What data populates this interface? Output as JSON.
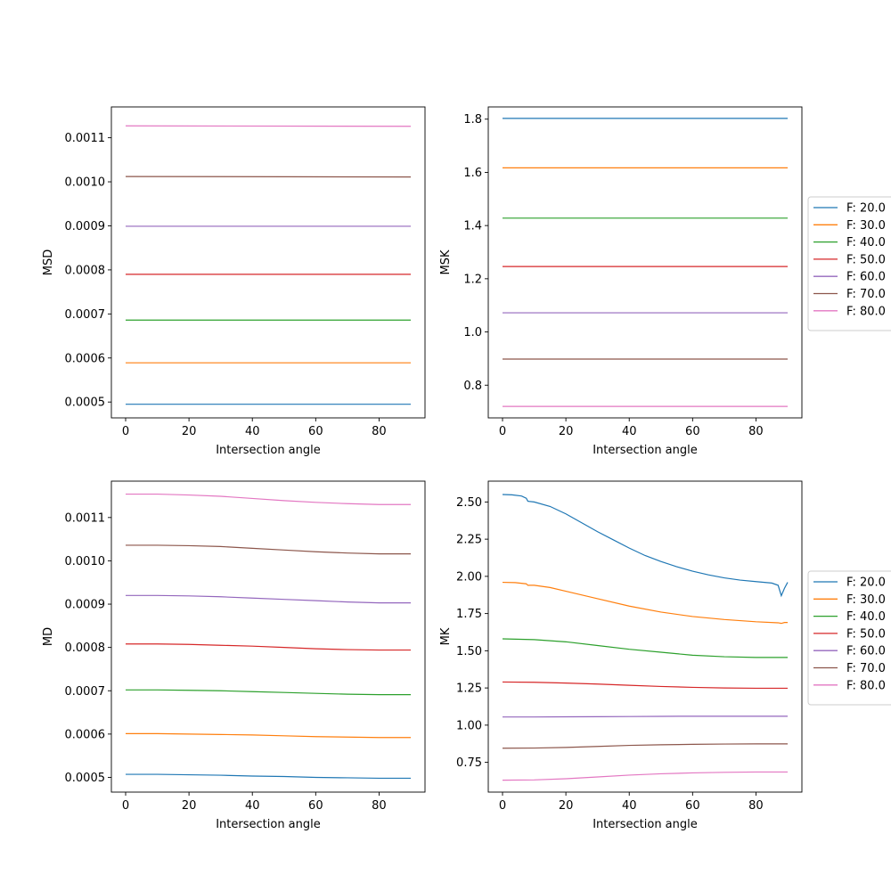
{
  "colors": {
    "series": [
      "#1f77b4",
      "#ff7f0e",
      "#2ca02c",
      "#d62728",
      "#9467bd",
      "#8c564b",
      "#e377c2"
    ]
  },
  "legend_entries": [
    "F: 20.0",
    "F: 30.0",
    "F: 40.0",
    "F: 50.0",
    "F: 60.0",
    "F: 70.0",
    "F: 80.0"
  ],
  "chart_data": [
    {
      "type": "line",
      "id": "msd",
      "title": "",
      "xlabel": "Intersection angle",
      "ylabel": "MSD",
      "xlim": [
        -4.5,
        94.5
      ],
      "ylim": [
        0.000464,
        0.00117
      ],
      "xticks": [
        0,
        20,
        40,
        60,
        80
      ],
      "yticks": [
        0.0005,
        0.0006,
        0.0007,
        0.0008,
        0.0009,
        0.001,
        0.0011
      ],
      "ytick_labels": [
        "0.0005",
        "0.0006",
        "0.0007",
        "0.0008",
        "0.0009",
        "0.0010",
        "0.0011"
      ],
      "legend": null,
      "series": [
        {
          "name": "F: 20.0",
          "x": [
            0,
            90
          ],
          "y": [
            0.000495,
            0.000495
          ]
        },
        {
          "name": "F: 30.0",
          "x": [
            0,
            90
          ],
          "y": [
            0.000589,
            0.000589
          ]
        },
        {
          "name": "F: 40.0",
          "x": [
            0,
            90
          ],
          "y": [
            0.000686,
            0.000686
          ]
        },
        {
          "name": "F: 50.0",
          "x": [
            0,
            90
          ],
          "y": [
            0.00079,
            0.00079
          ]
        },
        {
          "name": "F: 60.0",
          "x": [
            0,
            90
          ],
          "y": [
            0.000899,
            0.000899
          ]
        },
        {
          "name": "F: 70.0",
          "x": [
            0,
            90
          ],
          "y": [
            0.001012,
            0.001011
          ]
        },
        {
          "name": "F: 80.0",
          "x": [
            0,
            90
          ],
          "y": [
            0.001127,
            0.001126
          ]
        }
      ]
    },
    {
      "type": "line",
      "id": "msk",
      "title": "",
      "xlabel": "Intersection angle",
      "ylabel": "MSK",
      "xlim": [
        -4.5,
        94.5
      ],
      "ylim": [
        0.677,
        1.846
      ],
      "xticks": [
        0,
        20,
        40,
        60,
        80
      ],
      "yticks": [
        0.8,
        1.0,
        1.2,
        1.4,
        1.6,
        1.8
      ],
      "ytick_labels": [
        "0.8",
        "1.0",
        "1.2",
        "1.4",
        "1.6",
        "1.8"
      ],
      "legend": "right-outside",
      "series": [
        {
          "name": "F: 20.0",
          "x": [
            0,
            90
          ],
          "y": [
            1.803,
            1.803
          ]
        },
        {
          "name": "F: 30.0",
          "x": [
            0,
            90
          ],
          "y": [
            1.617,
            1.617
          ]
        },
        {
          "name": "F: 40.0",
          "x": [
            0,
            90
          ],
          "y": [
            1.428,
            1.428
          ]
        },
        {
          "name": "F: 50.0",
          "x": [
            0,
            90
          ],
          "y": [
            1.246,
            1.246
          ]
        },
        {
          "name": "F: 60.0",
          "x": [
            0,
            90
          ],
          "y": [
            1.072,
            1.072
          ]
        },
        {
          "name": "F: 70.0",
          "x": [
            0,
            90
          ],
          "y": [
            0.898,
            0.898
          ]
        },
        {
          "name": "F: 80.0",
          "x": [
            0,
            90
          ],
          "y": [
            0.72,
            0.72
          ]
        }
      ]
    },
    {
      "type": "line",
      "id": "md",
      "title": "",
      "xlabel": "Intersection angle",
      "ylabel": "MD",
      "xlim": [
        -4.5,
        94.5
      ],
      "ylim": [
        0.000466,
        0.001184
      ],
      "xticks": [
        0,
        20,
        40,
        60,
        80
      ],
      "yticks": [
        0.0005,
        0.0006,
        0.0007,
        0.0008,
        0.0009,
        0.001,
        0.0011
      ],
      "ytick_labels": [
        "0.0005",
        "0.0006",
        "0.0007",
        "0.0008",
        "0.0009",
        "0.0010",
        "0.0011"
      ],
      "legend": null,
      "series": [
        {
          "name": "F: 20.0",
          "x": [
            0,
            10,
            20,
            30,
            40,
            50,
            60,
            70,
            80,
            90
          ],
          "y": [
            0.000507,
            0.000507,
            0.000506,
            0.000505,
            0.000503,
            0.000502,
            0.0005,
            0.000499,
            0.000498,
            0.000498
          ]
        },
        {
          "name": "F: 30.0",
          "x": [
            0,
            10,
            20,
            30,
            40,
            50,
            60,
            70,
            80,
            90
          ],
          "y": [
            0.000601,
            0.000601,
            0.0006,
            0.000599,
            0.000598,
            0.000596,
            0.000594,
            0.000593,
            0.000592,
            0.000592
          ]
        },
        {
          "name": "F: 40.0",
          "x": [
            0,
            10,
            20,
            30,
            40,
            50,
            60,
            70,
            80,
            90
          ],
          "y": [
            0.000702,
            0.000702,
            0.000701,
            0.0007,
            0.000698,
            0.000696,
            0.000694,
            0.000692,
            0.000691,
            0.000691
          ]
        },
        {
          "name": "F: 50.0",
          "x": [
            0,
            10,
            20,
            30,
            40,
            50,
            60,
            70,
            80,
            90
          ],
          "y": [
            0.000808,
            0.000808,
            0.000807,
            0.000805,
            0.000803,
            0.0008,
            0.000797,
            0.000795,
            0.000794,
            0.000794
          ]
        },
        {
          "name": "F: 60.0",
          "x": [
            0,
            10,
            20,
            30,
            40,
            50,
            60,
            70,
            80,
            90
          ],
          "y": [
            0.00092,
            0.00092,
            0.000919,
            0.000917,
            0.000914,
            0.000911,
            0.000908,
            0.000905,
            0.000903,
            0.000903
          ]
        },
        {
          "name": "F: 70.0",
          "x": [
            0,
            10,
            20,
            30,
            40,
            50,
            60,
            70,
            80,
            90
          ],
          "y": [
            0.001036,
            0.001036,
            0.001035,
            0.001033,
            0.001029,
            0.001025,
            0.001021,
            0.001018,
            0.001016,
            0.001016
          ]
        },
        {
          "name": "F: 80.0",
          "x": [
            0,
            10,
            20,
            30,
            40,
            50,
            60,
            70,
            80,
            90
          ],
          "y": [
            0.001154,
            0.001154,
            0.001152,
            0.001149,
            0.001144,
            0.001139,
            0.001135,
            0.001132,
            0.00113,
            0.00113
          ]
        }
      ]
    },
    {
      "type": "line",
      "id": "mk",
      "title": "",
      "xlabel": "Intersection angle",
      "ylabel": "MK",
      "xlim": [
        -4.5,
        94.5
      ],
      "ylim": [
        0.55,
        2.64
      ],
      "xticks": [
        0,
        20,
        40,
        60,
        80
      ],
      "yticks": [
        0.75,
        1.0,
        1.25,
        1.5,
        1.75,
        2.0,
        2.25,
        2.5
      ],
      "ytick_labels": [
        "0.75",
        "1.00",
        "1.25",
        "1.50",
        "1.75",
        "2.00",
        "2.25",
        "2.50"
      ],
      "legend": "right-outside",
      "series": [
        {
          "name": "F: 20.0",
          "x": [
            0,
            3,
            6,
            7.5,
            8,
            10,
            15,
            20,
            25,
            30,
            35,
            40,
            45,
            50,
            55,
            60,
            65,
            70,
            75,
            80,
            85,
            87,
            88,
            89,
            90
          ],
          "y": [
            2.55,
            2.548,
            2.54,
            2.525,
            2.505,
            2.5,
            2.47,
            2.42,
            2.36,
            2.3,
            2.245,
            2.19,
            2.14,
            2.1,
            2.065,
            2.035,
            2.01,
            1.99,
            1.975,
            1.965,
            1.955,
            1.94,
            1.87,
            1.92,
            1.96
          ]
        },
        {
          "name": "F: 30.0",
          "x": [
            0,
            4,
            7.5,
            8,
            10,
            15,
            20,
            30,
            40,
            50,
            60,
            70,
            80,
            87,
            88,
            89,
            90
          ],
          "y": [
            1.96,
            1.958,
            1.95,
            1.94,
            1.94,
            1.925,
            1.9,
            1.85,
            1.8,
            1.76,
            1.73,
            1.71,
            1.695,
            1.688,
            1.684,
            1.69,
            1.69
          ]
        },
        {
          "name": "F: 40.0",
          "x": [
            0,
            10,
            20,
            30,
            40,
            50,
            60,
            70,
            80,
            90
          ],
          "y": [
            1.58,
            1.575,
            1.56,
            1.535,
            1.51,
            1.49,
            1.47,
            1.46,
            1.455,
            1.455
          ]
        },
        {
          "name": "F: 50.0",
          "x": [
            0,
            10,
            20,
            30,
            40,
            50,
            60,
            70,
            80,
            90
          ],
          "y": [
            1.29,
            1.288,
            1.283,
            1.276,
            1.268,
            1.26,
            1.254,
            1.25,
            1.248,
            1.248
          ]
        },
        {
          "name": "F: 60.0",
          "x": [
            0,
            10,
            20,
            30,
            40,
            50,
            60,
            70,
            80,
            90
          ],
          "y": [
            1.055,
            1.055,
            1.056,
            1.057,
            1.058,
            1.059,
            1.06,
            1.06,
            1.06,
            1.06
          ]
        },
        {
          "name": "F: 70.0",
          "x": [
            0,
            10,
            20,
            30,
            40,
            50,
            60,
            70,
            80,
            90
          ],
          "y": [
            0.845,
            0.846,
            0.85,
            0.857,
            0.864,
            0.868,
            0.871,
            0.873,
            0.874,
            0.874
          ]
        },
        {
          "name": "F: 80.0",
          "x": [
            0,
            10,
            20,
            30,
            40,
            50,
            60,
            70,
            80,
            90
          ],
          "y": [
            0.63,
            0.632,
            0.64,
            0.652,
            0.664,
            0.673,
            0.679,
            0.683,
            0.685,
            0.685
          ]
        }
      ]
    }
  ]
}
